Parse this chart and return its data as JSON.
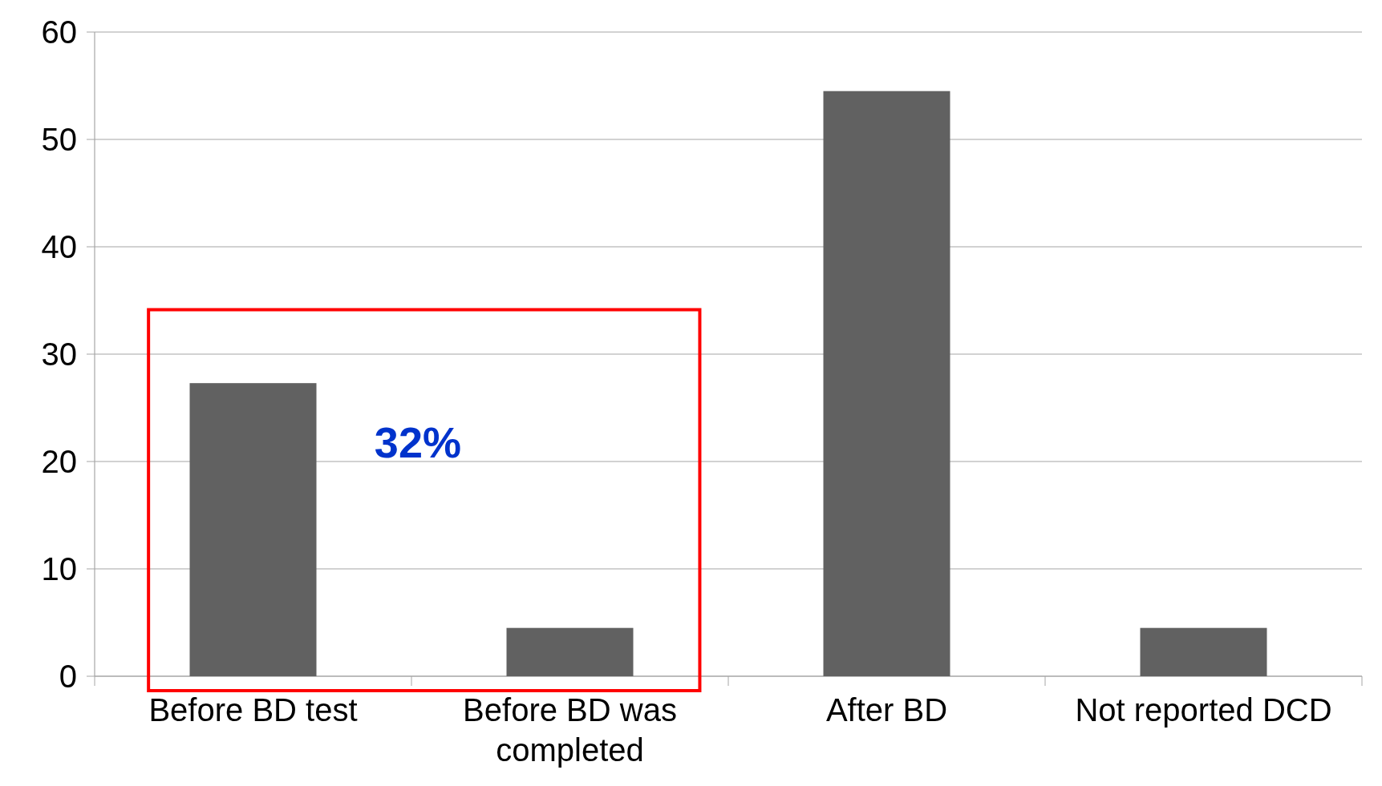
{
  "chart_data": {
    "type": "bar",
    "categories": [
      "Before BD test",
      "Before BD  was completed",
      "After BD",
      "Not reported DCD"
    ],
    "values": [
      27.3,
      4.5,
      54.5,
      4.5
    ],
    "color": "#616161",
    "ylim": [
      0,
      60
    ],
    "yticks": [
      0,
      10,
      20,
      30,
      40,
      50,
      60
    ],
    "grid": "y",
    "annotations": [
      "32%"
    ]
  }
}
